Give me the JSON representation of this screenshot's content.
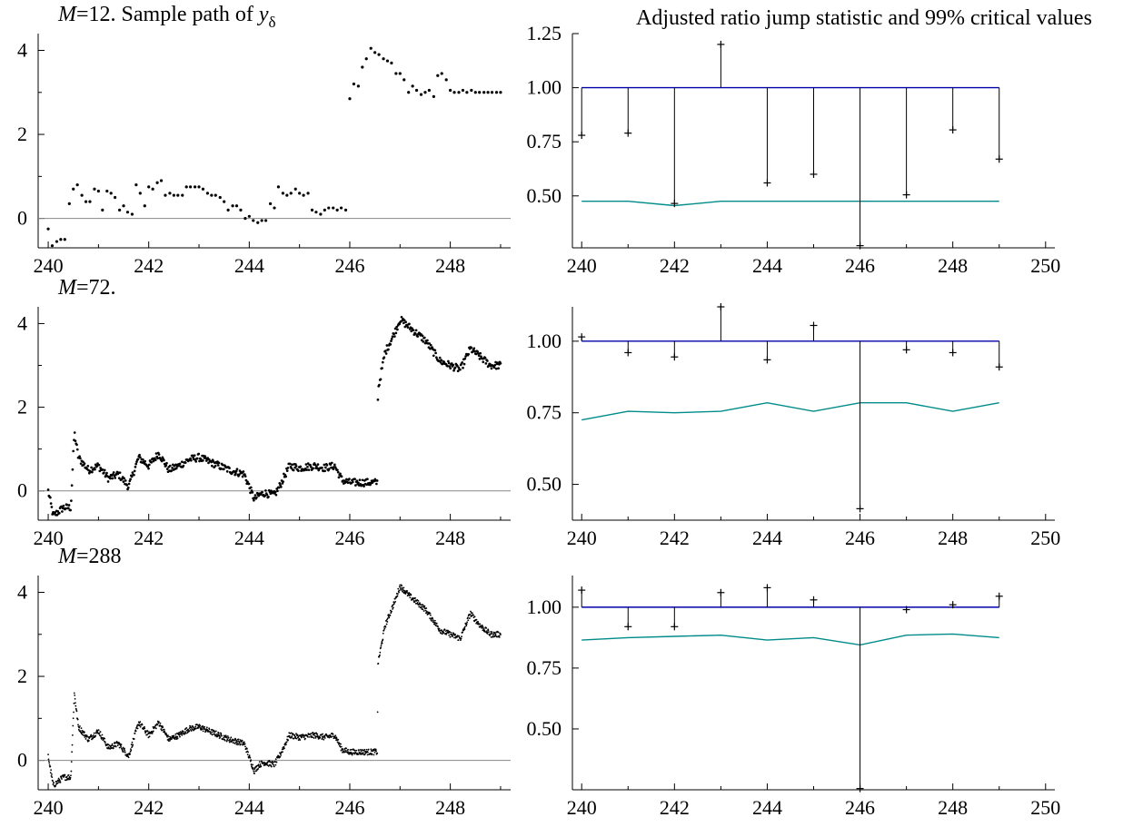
{
  "chart_data": [
    {
      "type": "scatter",
      "title": "Sample path of y",
      "title_prefix": "M",
      "title_m": "=12.",
      "title_sub": "δ",
      "m": 12,
      "xlim": [
        239.8,
        249.2
      ],
      "ylim": [
        -0.7,
        4.4
      ],
      "xticks": [
        240,
        242,
        244,
        246,
        248
      ],
      "yticks": [
        0,
        2,
        4
      ],
      "zero_line": true,
      "series": [
        {
          "x": [
            240.0,
            240.08,
            240.17,
            240.25,
            240.33,
            240.42,
            240.5,
            240.58,
            240.67,
            240.75,
            240.83,
            240.92,
            241.0,
            241.08,
            241.17,
            241.25,
            241.33,
            241.42,
            241.5,
            241.58,
            241.67,
            241.75,
            241.83,
            241.92,
            242.0,
            242.08,
            242.17,
            242.25,
            242.33,
            242.42,
            242.5,
            242.58,
            242.67,
            242.75,
            242.83,
            242.92,
            243.0,
            243.08,
            243.17,
            243.25,
            243.33,
            243.42,
            243.5,
            243.58,
            243.67,
            243.75,
            243.83,
            243.92,
            244.0,
            244.08,
            244.17,
            244.25,
            244.33,
            244.42,
            244.5,
            244.58,
            244.67,
            244.75,
            244.83,
            244.92,
            245.0,
            245.08,
            245.17,
            245.25,
            245.33,
            245.42,
            245.5,
            245.58,
            245.67,
            245.75,
            245.83,
            245.92,
            246.0,
            246.08,
            246.17,
            246.25,
            246.33,
            246.42,
            246.5,
            246.58,
            246.67,
            246.75,
            246.83,
            246.92,
            247.0,
            247.08,
            247.17,
            247.25,
            247.33,
            247.42,
            247.5,
            247.58,
            247.67,
            247.75,
            247.83,
            247.92,
            248.0,
            248.08,
            248.17,
            248.25,
            248.33,
            248.42,
            248.5,
            248.58,
            248.67,
            248.75,
            248.83,
            248.92,
            249.0
          ],
          "y": [
            -0.25,
            -0.65,
            -0.55,
            -0.5,
            -0.5,
            0.35,
            0.7,
            0.8,
            0.55,
            0.4,
            0.4,
            0.7,
            0.65,
            0.2,
            0.65,
            0.6,
            0.5,
            0.2,
            0.3,
            0.15,
            0.1,
            0.8,
            0.6,
            0.3,
            0.75,
            0.7,
            0.85,
            0.9,
            0.55,
            0.6,
            0.55,
            0.55,
            0.55,
            0.75,
            0.75,
            0.75,
            0.75,
            0.7,
            0.6,
            0.55,
            0.55,
            0.5,
            0.4,
            0.2,
            0.3,
            0.3,
            0.2,
            0.0,
            0.05,
            -0.05,
            -0.1,
            -0.05,
            -0.05,
            0.35,
            0.25,
            0.75,
            0.6,
            0.55,
            0.6,
            0.7,
            0.6,
            0.55,
            0.6,
            0.2,
            0.15,
            0.1,
            0.2,
            0.25,
            0.25,
            0.2,
            0.25,
            0.2,
            2.85,
            3.2,
            3.15,
            3.6,
            3.8,
            4.05,
            3.95,
            3.9,
            3.8,
            3.75,
            3.7,
            3.45,
            3.45,
            3.3,
            3.0,
            3.15,
            3.05,
            2.95,
            3.0,
            3.05,
            2.9,
            3.4,
            3.45,
            3.3,
            3.05,
            3.0,
            3.0,
            3.05,
            3.0,
            3.05,
            3.0,
            3.0,
            3.0,
            3.0,
            3.0,
            3.0,
            3.0
          ]
        }
      ]
    },
    {
      "type": "line",
      "title": "Adjusted ratio jump statistic and 99% critical values",
      "xlim": [
        239.8,
        250.2
      ],
      "ylim": [
        0.26,
        1.25
      ],
      "xticks": [
        240,
        242,
        244,
        246,
        248,
        250
      ],
      "yticks": [
        0.5,
        0.75,
        1.0,
        1.25
      ],
      "ytick_labels": [
        "0.50",
        "0.75",
        "1.00",
        "1.25"
      ],
      "colors": {
        "reference": "#0000aa",
        "critical": "#008b8b",
        "statistic": "#000000"
      },
      "x": [
        240,
        241,
        242,
        243,
        244,
        245,
        246,
        247,
        248,
        249
      ],
      "reference_level": 1.0,
      "statistic": [
        0.78,
        0.79,
        0.465,
        1.2,
        0.56,
        0.6,
        0.27,
        0.505,
        0.805,
        0.67
      ],
      "critical": [
        0.475,
        0.475,
        0.455,
        0.475,
        0.475,
        0.475,
        0.475,
        0.475,
        0.475,
        0.475
      ]
    },
    {
      "type": "scatter",
      "title_prefix": "M",
      "title_m": "=72.",
      "m": 72,
      "xlim": [
        239.8,
        249.2
      ],
      "ylim": [
        -0.7,
        4.4
      ],
      "xticks": [
        240,
        242,
        244,
        246,
        248
      ],
      "yticks": [
        0,
        2,
        4
      ],
      "zero_line": true,
      "anchors": {
        "x": [
          240.0,
          240.1,
          240.3,
          240.45,
          240.52,
          240.6,
          240.8,
          241.0,
          241.2,
          241.4,
          241.6,
          241.8,
          242.0,
          242.2,
          242.4,
          242.6,
          242.8,
          243.0,
          243.3,
          243.6,
          243.9,
          244.1,
          244.2,
          244.3,
          244.5,
          244.6,
          244.8,
          245.0,
          245.3,
          245.5,
          245.7,
          245.85,
          246.0,
          246.3,
          246.55,
          246.56,
          246.7,
          246.9,
          247.0,
          247.2,
          247.5,
          247.8,
          248.0,
          248.2,
          248.4,
          248.6,
          248.8,
          249.0
        ],
        "y": [
          0.0,
          -0.6,
          -0.4,
          -0.4,
          1.4,
          0.8,
          0.5,
          0.6,
          0.3,
          0.4,
          0.1,
          0.8,
          0.6,
          0.9,
          0.5,
          0.6,
          0.75,
          0.8,
          0.65,
          0.5,
          0.4,
          -0.2,
          -0.1,
          -0.05,
          -0.1,
          0.1,
          0.6,
          0.55,
          0.6,
          0.55,
          0.6,
          0.25,
          0.2,
          0.2,
          0.2,
          2.4,
          3.3,
          3.8,
          4.1,
          3.9,
          3.6,
          3.1,
          3.0,
          2.9,
          3.4,
          3.2,
          3.0,
          3.0
        ]
      }
    },
    {
      "type": "line",
      "xlim": [
        239.8,
        250.2
      ],
      "ylim": [
        0.375,
        1.12
      ],
      "xticks": [
        240,
        242,
        244,
        246,
        248,
        250
      ],
      "yticks": [
        0.5,
        0.75,
        1.0
      ],
      "ytick_labels": [
        "0.50",
        "0.75",
        "1.00"
      ],
      "colors": {
        "reference": "#0000aa",
        "critical": "#008b8b",
        "statistic": "#000000"
      },
      "x": [
        240,
        241,
        242,
        243,
        244,
        245,
        246,
        247,
        248,
        249
      ],
      "reference_level": 1.0,
      "statistic": [
        1.015,
        0.96,
        0.945,
        1.12,
        0.935,
        1.055,
        0.415,
        0.97,
        0.96,
        0.91
      ],
      "critical": [
        0.725,
        0.755,
        0.75,
        0.755,
        0.785,
        0.755,
        0.785,
        0.785,
        0.755,
        0.785
      ]
    },
    {
      "type": "scatter",
      "title_prefix": "M",
      "title_m": "=288",
      "m": 288,
      "xlim": [
        239.8,
        249.2
      ],
      "ylim": [
        -0.7,
        4.4
      ],
      "xticks": [
        240,
        242,
        244,
        246,
        248
      ],
      "yticks": [
        0,
        2,
        4
      ],
      "zero_line": true,
      "anchors": {
        "x": [
          240.0,
          240.1,
          240.3,
          240.45,
          240.52,
          240.6,
          240.8,
          241.0,
          241.2,
          241.4,
          241.6,
          241.8,
          242.0,
          242.2,
          242.4,
          242.6,
          242.8,
          243.0,
          243.3,
          243.6,
          243.9,
          244.1,
          244.2,
          244.3,
          244.5,
          244.6,
          244.8,
          245.0,
          245.3,
          245.5,
          245.7,
          245.85,
          246.0,
          246.3,
          246.55,
          246.56,
          246.7,
          246.9,
          247.0,
          247.2,
          247.5,
          247.8,
          248.0,
          248.2,
          248.4,
          248.6,
          248.8,
          249.0
        ],
        "y": [
          0.1,
          -0.6,
          -0.4,
          -0.4,
          1.6,
          0.8,
          0.5,
          0.7,
          0.3,
          0.4,
          0.1,
          0.9,
          0.6,
          0.9,
          0.5,
          0.6,
          0.75,
          0.8,
          0.65,
          0.5,
          0.4,
          -0.25,
          -0.1,
          -0.05,
          -0.1,
          0.1,
          0.6,
          0.55,
          0.6,
          0.55,
          0.6,
          0.25,
          0.2,
          0.2,
          0.2,
          2.3,
          3.2,
          3.8,
          4.15,
          3.9,
          3.6,
          3.1,
          3.0,
          2.9,
          3.5,
          3.2,
          3.0,
          3.0
        ]
      }
    },
    {
      "type": "line",
      "xlim": [
        239.8,
        250.2
      ],
      "ylim": [
        0.25,
        1.13
      ],
      "xticks": [
        240,
        242,
        244,
        246,
        248,
        250
      ],
      "yticks": [
        0.5,
        0.75,
        1.0
      ],
      "ytick_labels": [
        "0.50",
        "0.75",
        "1.00"
      ],
      "colors": {
        "reference": "#0000aa",
        "critical": "#008b8b",
        "statistic": "#000000"
      },
      "x": [
        240,
        241,
        242,
        243,
        244,
        245,
        246,
        247,
        248,
        249
      ],
      "reference_level": 1.0,
      "statistic": [
        1.07,
        0.92,
        0.92,
        1.06,
        1.08,
        1.03,
        0.255,
        0.99,
        1.01,
        1.045
      ],
      "critical": [
        0.865,
        0.875,
        0.88,
        0.885,
        0.865,
        0.875,
        0.845,
        0.885,
        0.89,
        0.875
      ]
    }
  ]
}
